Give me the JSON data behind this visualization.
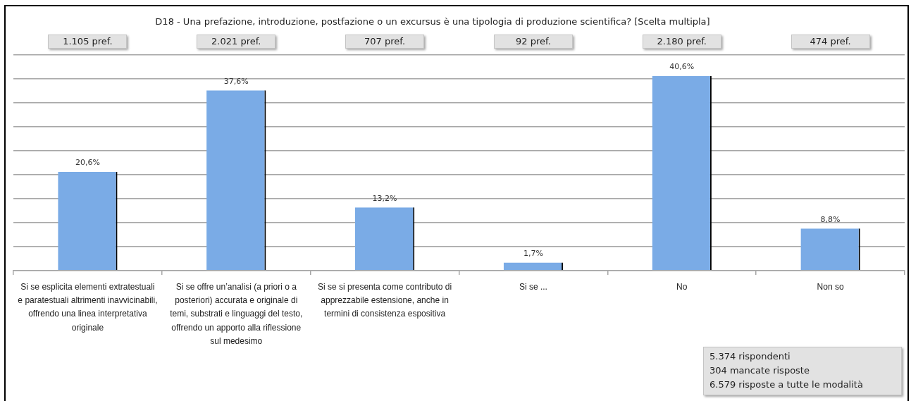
{
  "chart_data": {
    "type": "bar",
    "title": "D18 - Una prefazione, introduzione, postfazione o un excursus è una tipologia di produzione scientifica? [Scelta multipla]",
    "categories": [
      "Si se esplicita elementi extratestuali e paratestuali altrimenti inavvicinabili, offrendo una linea interpretativa originale",
      "Si se offre un’analisi (a priori o a posteriori) accurata e originale di temi, substrati e linguaggi del testo, offrendo un apporto alla riflessione sul medesimo",
      "Si se si presenta come contributo di apprezzabile estensione, anche in termini di consistenza espositiva",
      "Si se ...",
      "No",
      "Non so"
    ],
    "values": [
      20.6,
      37.6,
      13.2,
      1.7,
      40.6,
      8.8
    ],
    "color": "#7aabe6",
    "value_labels": [
      "20,6%",
      "37,6%",
      "13,2%",
      "1,7%",
      "40,6%",
      "8,8%"
    ],
    "ylim": [
      0,
      45
    ],
    "yticks": [
      {
        "value": 0,
        "label": null
      },
      {
        "value": 5,
        "label": null
      },
      {
        "value": 10,
        "label": null
      },
      {
        "value": 15,
        "label": null
      },
      {
        "value": 20,
        "label": null
      },
      {
        "value": 25,
        "label": null
      },
      {
        "value": 30,
        "label": null
      },
      {
        "value": 35,
        "label": null
      },
      {
        "value": 40,
        "label": null
      },
      {
        "value": 45,
        "label": null
      }
    ],
    "grid": "y",
    "tick_labels": "x",
    "annotations": [
      "1.105 pref.",
      "2.021 pref.",
      "707 pref.",
      "92 pref.",
      "2.180 pref.",
      "474 pref.",
      "5.374 rispondenti",
      "304 mancate risposte",
      "6.579 risposte a tutte le modalità"
    ]
  }
}
